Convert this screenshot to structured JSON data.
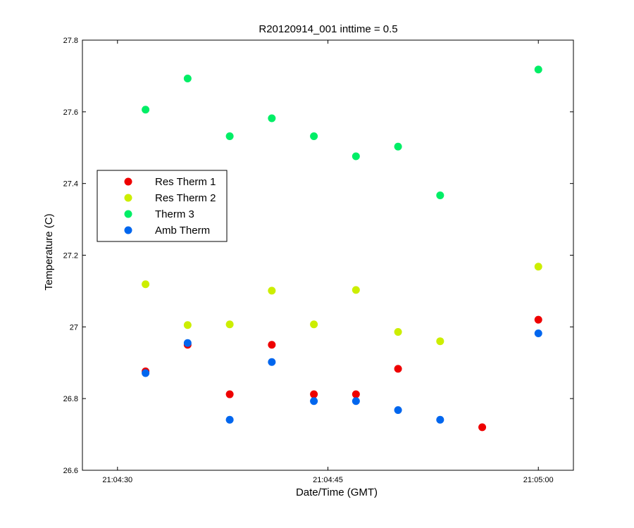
{
  "chart_data": {
    "type": "scatter",
    "title": "R20120914_001 inttime = 0.5",
    "xlabel": "Date/Time (GMT)",
    "ylabel": "Temperature (C)",
    "xlim": [
      "21:04:27.5",
      "21:05:02.5"
    ],
    "ylim": [
      26.6,
      27.8
    ],
    "x_ticks": [
      "21:04:30",
      "21:04:45",
      "21:05:00"
    ],
    "y_ticks": [
      "26.6",
      "26.8",
      "27",
      "27.2",
      "27.4",
      "27.6",
      "27.8"
    ],
    "legend_position": "left",
    "grid": false,
    "x": [
      "21:04:32",
      "21:04:35",
      "21:04:38",
      "21:04:41",
      "21:04:44",
      "21:04:47",
      "21:04:50",
      "21:04:53",
      "21:04:56",
      "21:05:00"
    ],
    "series": [
      {
        "name": "Res Therm 1",
        "color": "#ee0000",
        "values": [
          26.876,
          26.95,
          26.812,
          26.95,
          26.812,
          26.812,
          26.883,
          null,
          26.72,
          27.02
        ]
      },
      {
        "name": "Res Therm 2",
        "color": "#ccee00",
        "values": [
          27.119,
          27.005,
          27.007,
          27.101,
          27.007,
          27.103,
          26.986,
          26.96,
          null,
          27.168
        ]
      },
      {
        "name": "Therm 3",
        "color": "#00ee66",
        "values": [
          27.606,
          27.693,
          27.532,
          27.582,
          27.532,
          27.476,
          27.503,
          27.367,
          null,
          27.718
        ]
      },
      {
        "name": "Amb Therm",
        "color": "#0066ee",
        "values": [
          26.871,
          26.955,
          26.741,
          26.902,
          26.793,
          26.793,
          26.768,
          26.741,
          null,
          26.982
        ]
      }
    ]
  }
}
